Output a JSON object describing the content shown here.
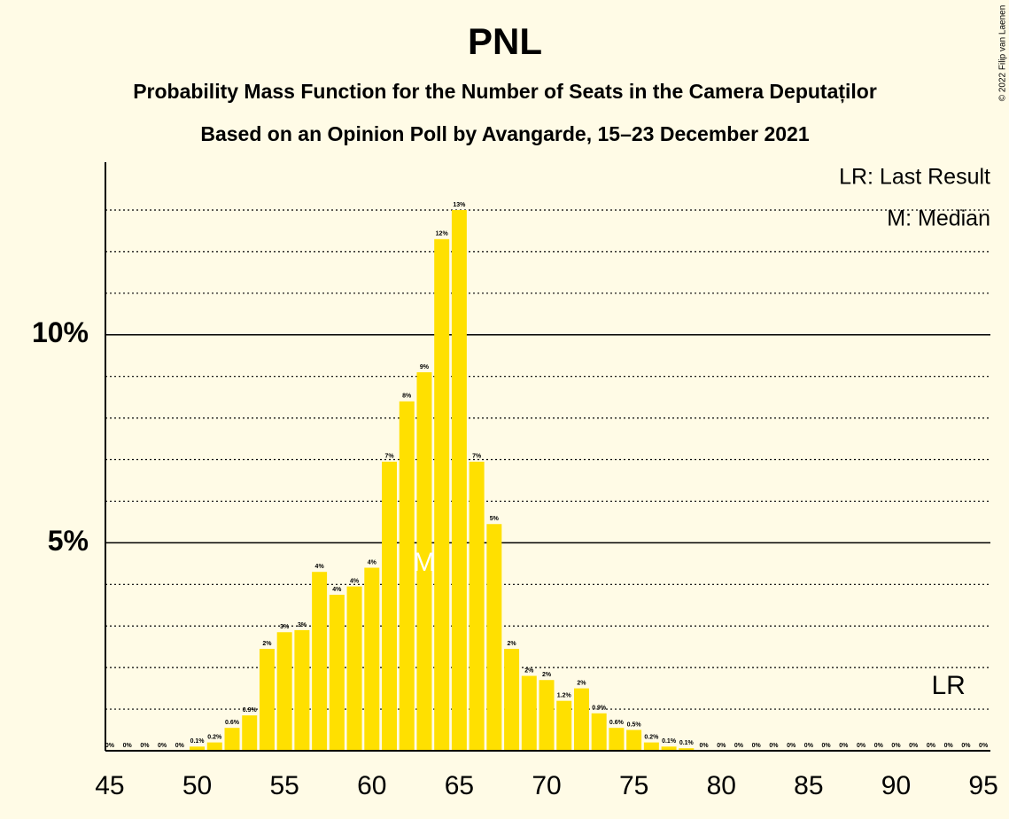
{
  "chart_data": {
    "type": "bar",
    "title": "PNL",
    "subtitle": "Probability Mass Function for the Number of Seats in the Camera Deputaților",
    "subtitle2": "Based on an Opinion Poll by Avangarde, 15–23 December 2021",
    "copyright": "© 2022 Filip van Laenen",
    "legend": [
      "LR: Last Result",
      "M: Median"
    ],
    "median": {
      "label": "M",
      "x": 63
    },
    "last_result": {
      "label": "LR",
      "x": 93
    },
    "color": "#ffe000",
    "x": [
      45,
      46,
      47,
      48,
      49,
      50,
      51,
      52,
      53,
      54,
      55,
      56,
      57,
      58,
      59,
      60,
      61,
      62,
      63,
      64,
      65,
      66,
      67,
      68,
      69,
      70,
      71,
      72,
      73,
      74,
      75,
      76,
      77,
      78,
      79,
      80,
      81,
      82,
      83,
      84,
      85,
      86,
      87,
      88,
      89,
      90,
      91,
      92,
      93,
      94,
      95
    ],
    "values": [
      0,
      0,
      0,
      0,
      0,
      0.1,
      0.2,
      0.55,
      0.85,
      2.45,
      2.85,
      2.9,
      4.3,
      3.75,
      3.95,
      4.4,
      6.95,
      8.4,
      9.1,
      12.3,
      13.0,
      6.95,
      5.45,
      2.45,
      1.8,
      1.7,
      1.2,
      1.5,
      0.9,
      0.55,
      0.5,
      0.2,
      0.1,
      0.06,
      0,
      0,
      0,
      0,
      0,
      0,
      0,
      0,
      0,
      0,
      0,
      0,
      0,
      0,
      0,
      0,
      0
    ],
    "value_labels": [
      "0%",
      "0%",
      "0%",
      "0%",
      "0%",
      "0.1%",
      "0.2%",
      "0.6%",
      "0.9%",
      "2%",
      "3%",
      "3%",
      "4%",
      "4%",
      "4%",
      "4%",
      "7%",
      "8%",
      "9%",
      "12%",
      "13%",
      "7%",
      "5%",
      "2%",
      "2%",
      "2%",
      "1.2%",
      "2%",
      "0.9%",
      "0.6%",
      "0.5%",
      "0.2%",
      "0.1%",
      "0.1%",
      "0%",
      "0%",
      "0%",
      "0%",
      "0%",
      "0%",
      "0%",
      "0%",
      "0%",
      "0%",
      "0%",
      "0%",
      "0%",
      "0%",
      "0%",
      "0%",
      "0%"
    ],
    "xlim": [
      44.75,
      95.4
    ],
    "xticks": [
      45,
      50,
      55,
      60,
      65,
      70,
      75,
      80,
      85,
      90,
      95
    ],
    "ylim": [
      0,
      14.15
    ],
    "yticks": [
      {
        "value": 5,
        "label": "5%"
      },
      {
        "value": 10,
        "label": "10%"
      }
    ],
    "minor_yticks": [
      1,
      2,
      3,
      4,
      6,
      7,
      8,
      9,
      11,
      12,
      13
    ],
    "grid": true
  }
}
